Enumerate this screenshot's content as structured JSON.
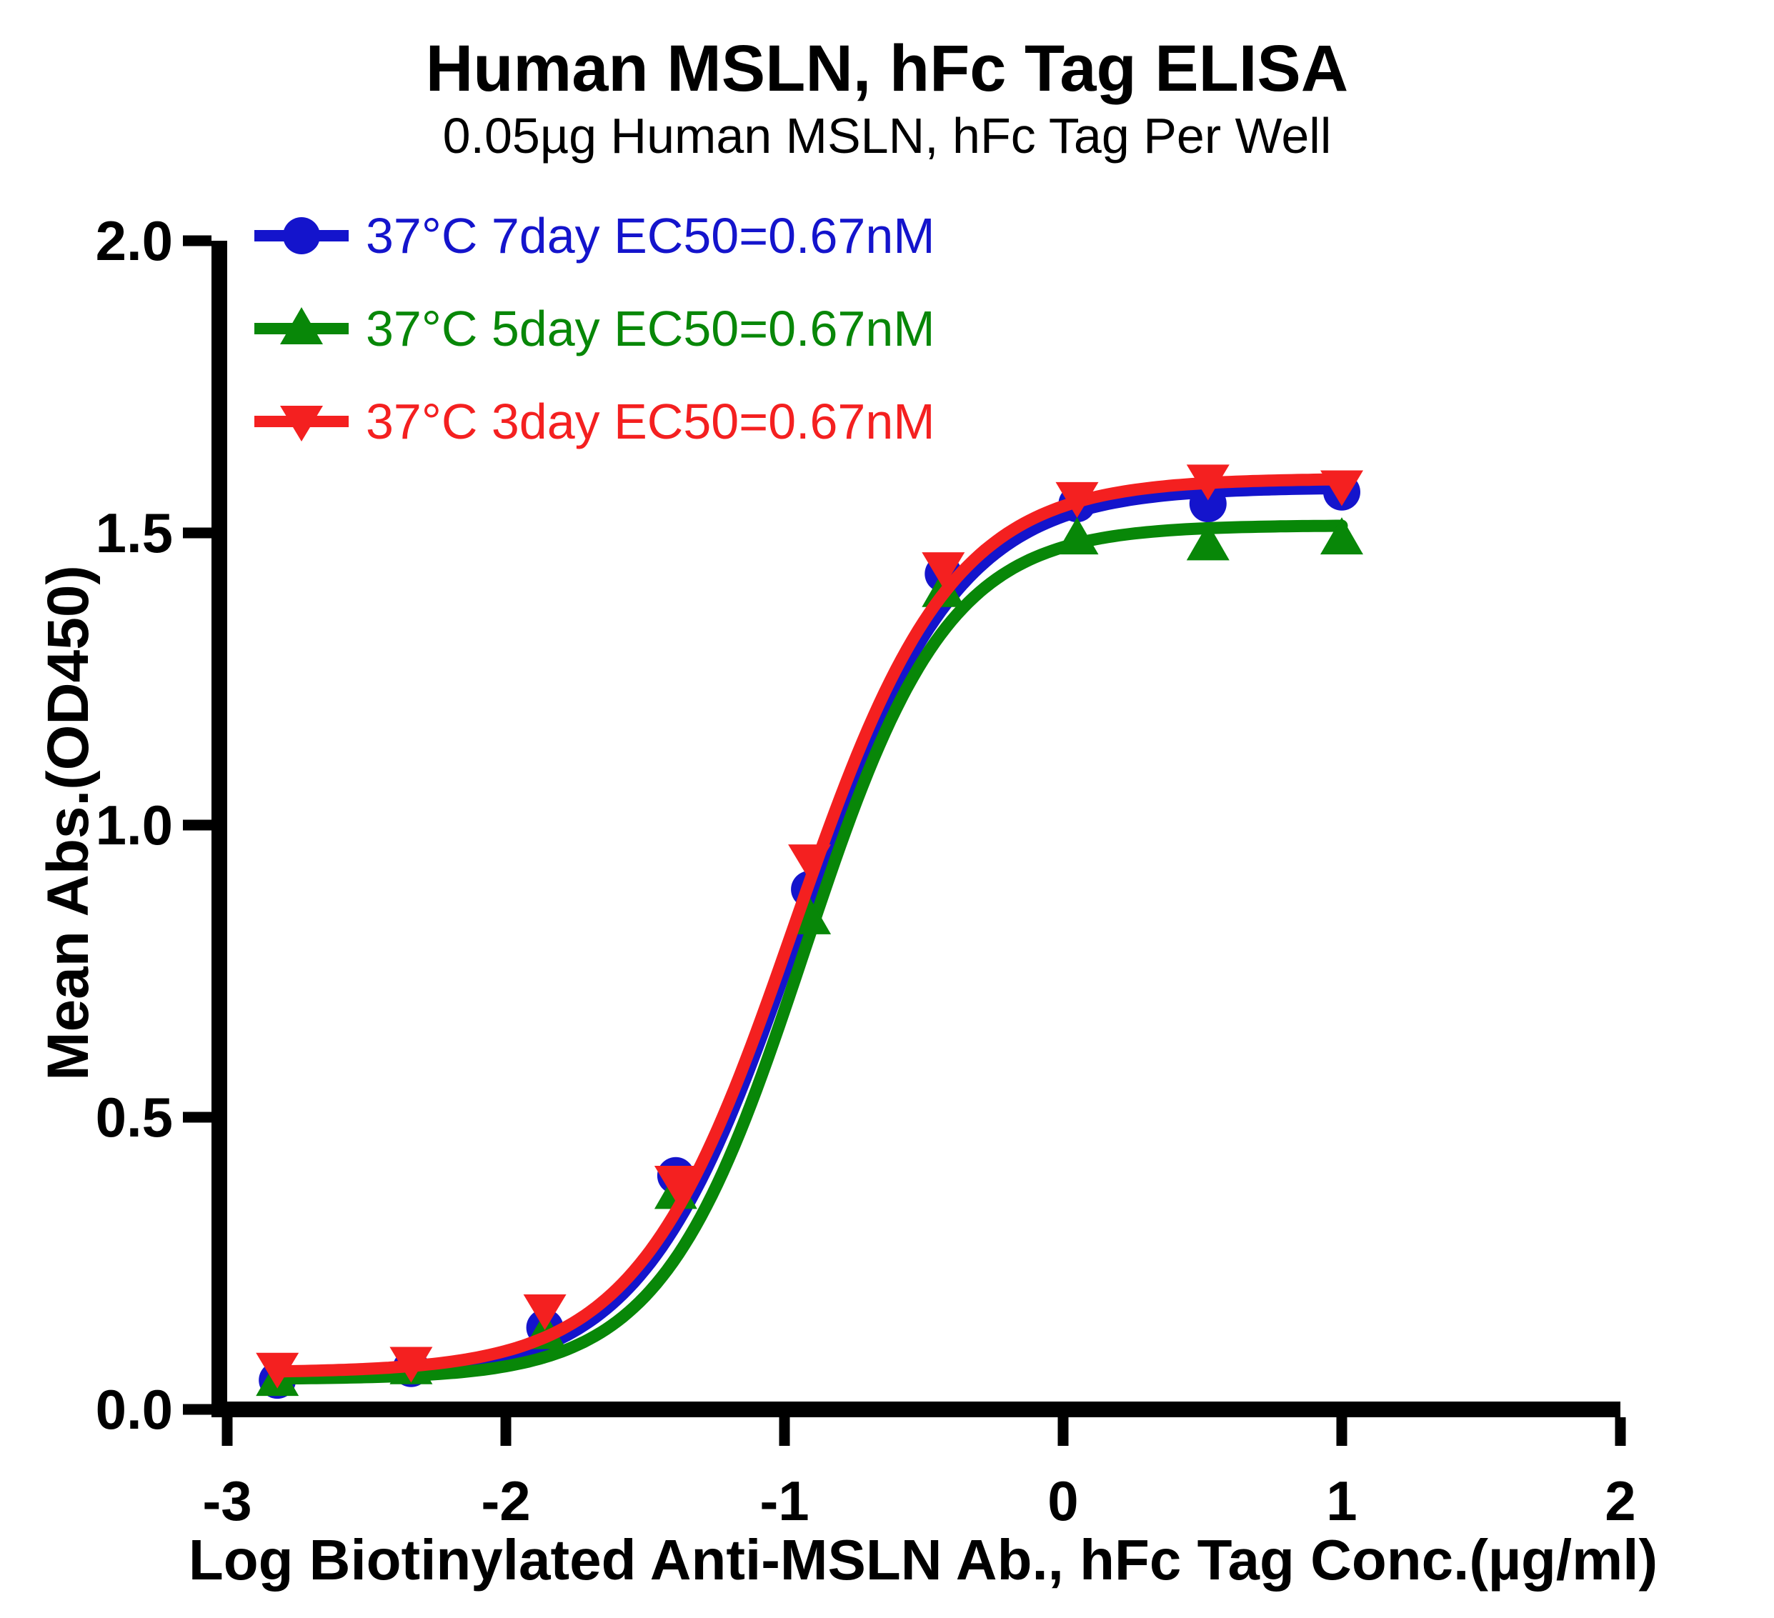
{
  "title": "Human MSLN, hFc Tag ELISA",
  "subtitle": "0.05µg Human MSLN, hFc Tag Per Well",
  "legend": {
    "position": "top-left inside",
    "items": [
      {
        "label": "37°C 7day EC50=0.67nM",
        "marker": "circle",
        "color": "#1414cc"
      },
      {
        "label": "37°C 5day EC50=0.67nM",
        "marker": "triangle-up",
        "color": "#088708"
      },
      {
        "label": "37°C 3day EC50=0.67nM",
        "marker": "triangle-down",
        "color": "#f42020"
      }
    ]
  },
  "chart_data": {
    "type": "scatter",
    "subtype": "4-parameter-logistic dose-response with fitted curves",
    "title": "Human MSLN, hFc Tag ELISA",
    "subtitle": "0.05µg Human MSLN, hFc Tag Per Well",
    "xlabel": "Log Biotinylated Anti-MSLN Ab., hFc Tag Conc.(µg/ml)",
    "ylabel": "Mean Abs.(OD450)",
    "xlim": [
      -3,
      2
    ],
    "ylim": [
      0,
      2
    ],
    "grid": false,
    "x_ticks": [
      -3,
      -2,
      -1,
      0,
      1,
      2
    ],
    "x_tick_labels": [
      "-3",
      "-2",
      "-1",
      "0",
      "1",
      "2"
    ],
    "y_ticks": [
      0.0,
      0.5,
      1.0,
      1.5,
      2.0
    ],
    "y_tick_labels": [
      "0.0",
      "0.5",
      "1.0",
      "1.5",
      "2.0"
    ],
    "x": [
      -2.82,
      -2.34,
      -1.86,
      -1.39,
      -0.91,
      -0.43,
      0.05,
      0.52,
      1.0
    ],
    "series": [
      {
        "name": "37°C 7day",
        "ec50": "0.67nM",
        "color": "#1414cc",
        "marker": "circle",
        "values": [
          0.05,
          0.07,
          0.14,
          0.4,
          0.89,
          1.43,
          1.55,
          1.55,
          1.57
        ],
        "fit": {
          "bottom": 0.052,
          "top": 1.578,
          "logec50": -0.95,
          "hill": 1.55
        }
      },
      {
        "name": "37°C 5day",
        "ec50": "0.67nM",
        "color": "#088708",
        "marker": "triangle-up",
        "values": [
          0.05,
          0.07,
          0.13,
          0.37,
          0.84,
          1.4,
          1.49,
          1.48,
          1.49
        ],
        "fit": {
          "bottom": 0.052,
          "top": 1.513,
          "logec50": -0.93,
          "hill": 1.7
        }
      },
      {
        "name": "37°C 3day",
        "ec50": "0.67nM",
        "color": "#f42020",
        "marker": "triangle-down",
        "values": [
          0.07,
          0.08,
          0.17,
          0.39,
          0.94,
          1.44,
          1.56,
          1.59,
          1.58
        ],
        "fit": {
          "bottom": 0.063,
          "top": 1.593,
          "logec50": -0.965,
          "hill": 1.55
        }
      }
    ]
  }
}
